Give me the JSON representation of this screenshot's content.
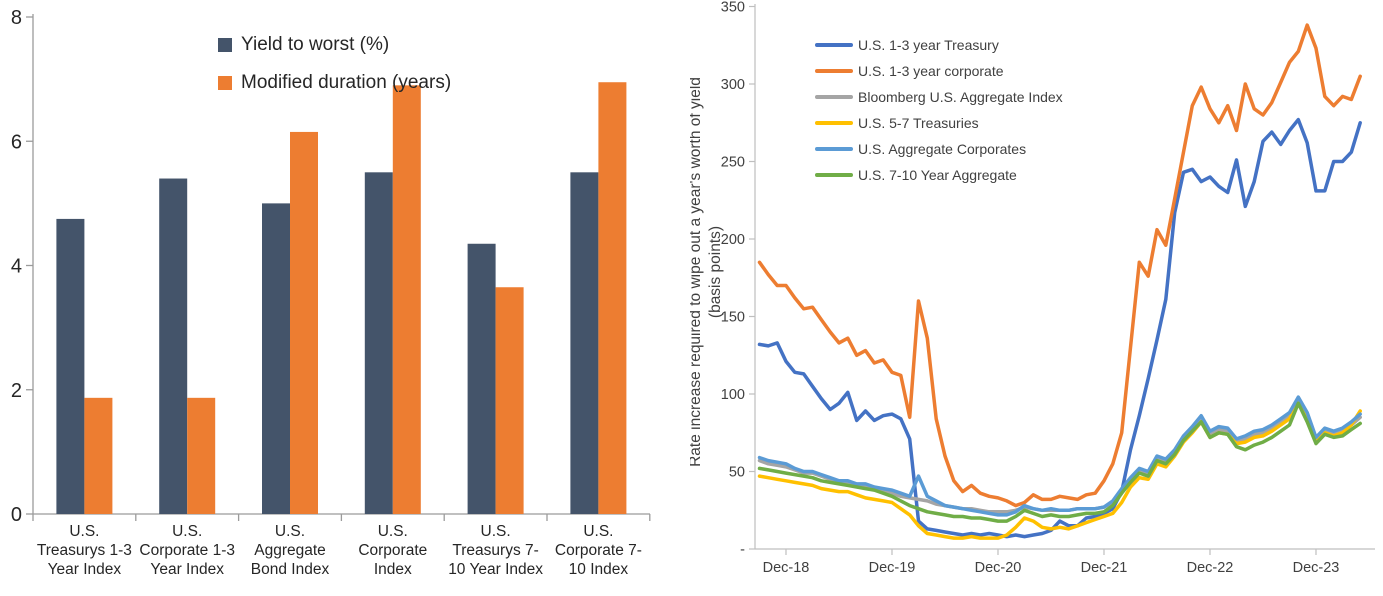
{
  "chart_data": [
    {
      "type": "bar",
      "title": "",
      "legend_position": "top-left-inside",
      "grid": false,
      "ylim": [
        0,
        8
      ],
      "yticks": [
        0,
        2,
        4,
        6,
        8
      ],
      "categories": [
        "U.S. Treasurys 1-3 Year Index",
        "U.S. Corporate 1-3 Year Index",
        "U.S. Aggregate Bond Index",
        "U.S. Corporate Index",
        "U.S. Treasurys 7-10 Year Index",
        "U.S. Corporate 7-10  Index"
      ],
      "series": [
        {
          "name": "Yield to worst (%)",
          "color": "#44546A",
          "values": [
            4.75,
            5.4,
            5.0,
            5.5,
            4.35,
            5.5
          ]
        },
        {
          "name": "Modified duration (years)",
          "color": "#ED7D31",
          "values": [
            1.87,
            1.87,
            6.15,
            6.9,
            3.65,
            6.95
          ]
        }
      ]
    },
    {
      "type": "line",
      "ylabel_line1": "Rate increase required to wipe out a year's worth of yield",
      "ylabel_line2": "(basis points)",
      "legend_position": "top-left-inside",
      "grid": false,
      "ylim": [
        0,
        350
      ],
      "yticks": [
        {
          "v": 350,
          "label": "350"
        },
        {
          "v": 300,
          "label": "300"
        },
        {
          "v": 250,
          "label": "250"
        },
        {
          "v": 200,
          "label": "200"
        },
        {
          "v": 150,
          "label": "150"
        },
        {
          "v": 100,
          "label": "100"
        },
        {
          "v": 50,
          "label": "50"
        },
        {
          "v": 0,
          "label": "-"
        }
      ],
      "x_interval": "monthly",
      "x_start": "Sep-18",
      "x_end": "May-24",
      "xticks": [
        {
          "month_index": 3,
          "label": "Dec-18"
        },
        {
          "month_index": 15,
          "label": "Dec-19"
        },
        {
          "month_index": 27,
          "label": "Dec-20"
        },
        {
          "month_index": 39,
          "label": "Dec-21"
        },
        {
          "month_index": 51,
          "label": "Dec-22"
        },
        {
          "month_index": 63,
          "label": "Dec-23"
        }
      ],
      "series": [
        {
          "name": "U.S. 1-3 year Treasury",
          "color": "#4472C4",
          "values": [
            132,
            131,
            133,
            121,
            114,
            113,
            105,
            97,
            90,
            94,
            101,
            83,
            89,
            83,
            86,
            87,
            84,
            71,
            18,
            13,
            12,
            11,
            10,
            9,
            10,
            9,
            10,
            9,
            8,
            9,
            8,
            9,
            10,
            12,
            18,
            15,
            15,
            20,
            21,
            23,
            26,
            37,
            64,
            86,
            110,
            135,
            161,
            217,
            243,
            245,
            237,
            240,
            234,
            230,
            251,
            221,
            237,
            263,
            269,
            261,
            270,
            277,
            262,
            231,
            231,
            250,
            250,
            256,
            275
          ]
        },
        {
          "name": "U.S. 1-3 year corporate",
          "color": "#ED7D31",
          "values": [
            185,
            177,
            170,
            170,
            162,
            155,
            156,
            148,
            140,
            133,
            136,
            125,
            128,
            120,
            122,
            114,
            112,
            85,
            160,
            136,
            84,
            60,
            44,
            37,
            41,
            36,
            34,
            33,
            31,
            28,
            30,
            35,
            32,
            32,
            34,
            33,
            32,
            35,
            36,
            44,
            55,
            75,
            130,
            185,
            176,
            206,
            196,
            226,
            256,
            286,
            298,
            284,
            275,
            286,
            270,
            300,
            284,
            280,
            288,
            301,
            314,
            321,
            338,
            323,
            292,
            286,
            292,
            290,
            305
          ]
        },
        {
          "name": "Bloomberg U.S. Aggregate Index",
          "color": "#A5A5A5",
          "values": [
            57,
            55,
            54,
            53,
            51,
            49,
            49,
            47,
            45,
            43,
            43,
            41,
            41,
            39,
            38,
            36,
            34,
            33,
            32,
            31,
            29,
            28,
            27,
            26,
            26,
            25,
            24,
            24,
            24,
            25,
            27,
            26,
            25,
            25,
            25,
            25,
            26,
            26,
            26,
            27,
            30,
            37,
            44,
            50,
            48,
            58,
            56,
            62,
            71,
            77,
            84,
            74,
            77,
            76,
            69,
            71,
            74,
            75,
            78,
            82,
            86,
            96,
            86,
            70,
            76,
            74,
            76,
            80,
            85
          ]
        },
        {
          "name": "U.S. 5-7 Treasuries",
          "color": "#FFC000",
          "values": [
            47,
            46,
            45,
            44,
            43,
            42,
            41,
            39,
            38,
            37,
            37,
            35,
            33,
            32,
            31,
            30,
            26,
            22,
            15,
            10,
            9,
            8,
            7,
            7,
            8,
            7,
            7,
            7,
            9,
            14,
            20,
            18,
            14,
            13,
            14,
            13,
            15,
            17,
            19,
            21,
            23,
            30,
            40,
            46,
            45,
            55,
            53,
            60,
            69,
            75,
            82,
            72,
            75,
            74,
            68,
            69,
            72,
            73,
            76,
            80,
            84,
            94,
            84,
            69,
            75,
            73,
            75,
            80,
            89
          ]
        },
        {
          "name": "U.S. Aggregate Corporates",
          "color": "#5B9BD5",
          "values": [
            59,
            57,
            56,
            55,
            52,
            50,
            50,
            48,
            46,
            44,
            44,
            42,
            42,
            40,
            39,
            38,
            36,
            34,
            47,
            34,
            31,
            28,
            27,
            26,
            25,
            24,
            23,
            22,
            22,
            24,
            28,
            26,
            25,
            26,
            25,
            25,
            26,
            26,
            26,
            27,
            31,
            39,
            46,
            52,
            50,
            60,
            58,
            64,
            73,
            79,
            86,
            76,
            79,
            78,
            71,
            73,
            76,
            77,
            80,
            84,
            88,
            98,
            88,
            72,
            78,
            76,
            78,
            82,
            87
          ]
        },
        {
          "name": "U.S. 7-10 Year Aggregate",
          "color": "#70AD47",
          "values": [
            52,
            51,
            50,
            49,
            48,
            47,
            46,
            44,
            43,
            42,
            41,
            40,
            39,
            38,
            36,
            34,
            31,
            28,
            26,
            24,
            23,
            22,
            21,
            21,
            20,
            20,
            19,
            18,
            18,
            21,
            25,
            23,
            21,
            22,
            21,
            21,
            22,
            23,
            23,
            24,
            28,
            36,
            43,
            49,
            47,
            57,
            55,
            61,
            70,
            76,
            82,
            72,
            75,
            74,
            66,
            64,
            67,
            69,
            72,
            76,
            80,
            94,
            82,
            68,
            74,
            72,
            73,
            77,
            81
          ]
        }
      ]
    }
  ]
}
